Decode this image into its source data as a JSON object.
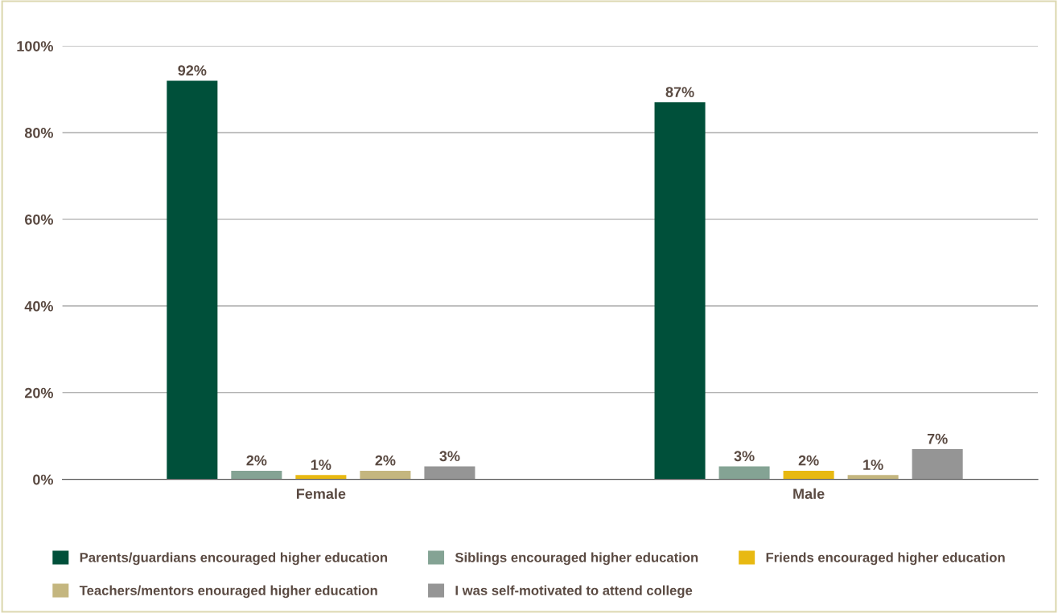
{
  "chart_data": {
    "type": "bar",
    "categories": [
      "Female",
      "Male"
    ],
    "series": [
      {
        "name": "Parents/guardians encouraged higher education",
        "color": "#00503a",
        "values": [
          92,
          87
        ],
        "value_labels": [
          "92%",
          "87%"
        ]
      },
      {
        "name": "Siblings encouraged higher education",
        "color": "#84a394",
        "values": [
          2,
          3
        ],
        "value_labels": [
          "2%",
          "3%"
        ]
      },
      {
        "name": "Friends encouraged higher education",
        "color": "#e8b912",
        "values": [
          1,
          2
        ],
        "value_labels": [
          "1%",
          "2%"
        ]
      },
      {
        "name": "Teachers/mentors enouraged higher education",
        "color": "#c4b67f",
        "values": [
          2,
          1
        ],
        "value_labels": [
          "2%",
          "1%"
        ]
      },
      {
        "name": "I was self-motivated to attend college",
        "color": "#959595",
        "values": [
          3,
          7
        ],
        "value_labels": [
          "3%",
          "7%"
        ]
      }
    ],
    "ylim": [
      0,
      100
    ],
    "yticks": [
      {
        "value": 0,
        "label": "0%"
      },
      {
        "value": 20,
        "label": "20%"
      },
      {
        "value": 40,
        "label": "40%"
      },
      {
        "value": 60,
        "label": "60%"
      },
      {
        "value": 80,
        "label": "80%"
      },
      {
        "value": 100,
        "label": "100%"
      }
    ],
    "grid": "y",
    "legend": "bottom"
  }
}
